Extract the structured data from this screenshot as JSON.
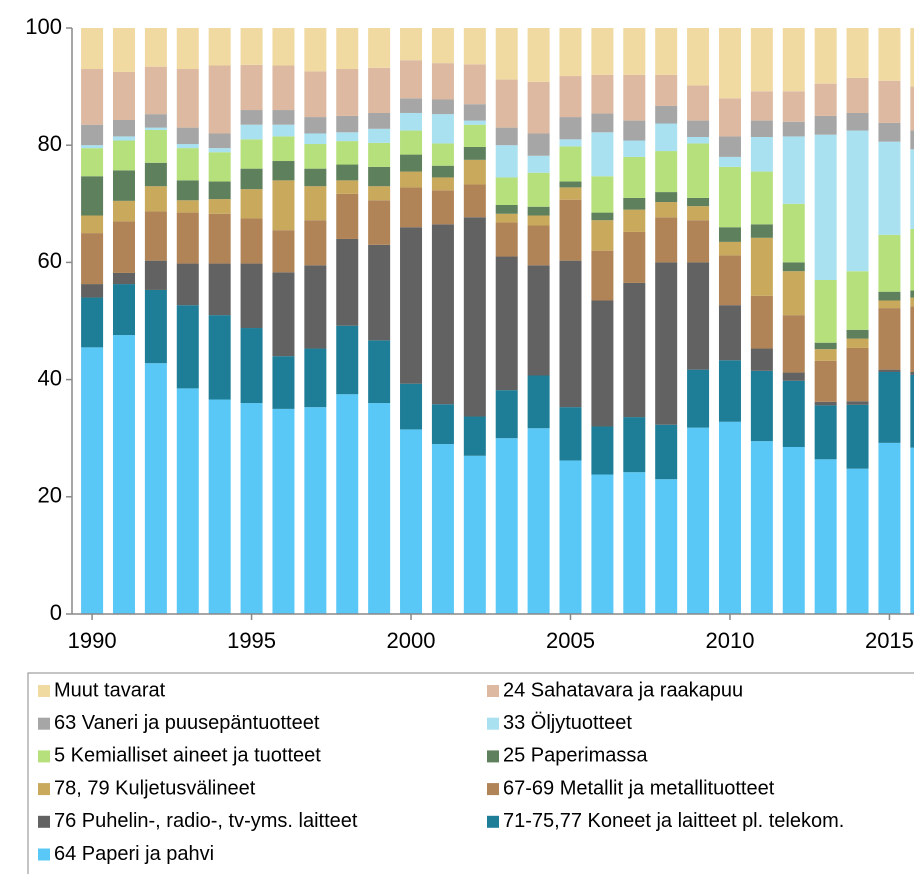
{
  "chart_data": {
    "type": "stacked_bar",
    "x": [
      1990,
      1991,
      1992,
      1993,
      1994,
      1995,
      1996,
      1997,
      1998,
      1999,
      2000,
      2001,
      2002,
      2003,
      2004,
      2005,
      2006,
      2007,
      2008,
      2009,
      2010,
      2011,
      2012,
      2013,
      2014,
      2015,
      2016
    ],
    "xlim": [
      1989.37,
      2015.77
    ],
    "xticks": [
      1990,
      1995,
      2000,
      2005,
      2010,
      2015
    ],
    "ylim": [
      0,
      100
    ],
    "yticks": [
      0,
      20,
      40,
      60,
      80,
      100
    ],
    "grid": false,
    "series": [
      {
        "name": "Muut tavarat",
        "color": "#f0daa2",
        "values": [
          7,
          7.5,
          6.6,
          7,
          6.4,
          6.3,
          6.4,
          7.4,
          7,
          6.8,
          5.5,
          6,
          6.2,
          8.8,
          9.2,
          8.2,
          8,
          8,
          8,
          9.8,
          12,
          10.8,
          10.8,
          9.5,
          8.5,
          9,
          10
        ]
      },
      {
        "name": "24 Sahatavara ja raakapuu",
        "color": "#dcb9a0",
        "values": [
          9.5,
          8.2,
          8.1,
          10,
          11.6,
          7.7,
          7.6,
          7.8,
          8,
          7.7,
          6.5,
          6.2,
          6.8,
          8.2,
          8.8,
          7,
          6.6,
          7.8,
          5.3,
          6,
          6.5,
          5,
          5.2,
          5.5,
          6,
          7.2,
          7.5
        ]
      },
      {
        "name": "63 Vaneri ja puusepäntuotteet",
        "color": "#a6a6a6",
        "values": [
          3.5,
          2.8,
          2.3,
          2.8,
          2.5,
          2.5,
          2.5,
          2.8,
          2.8,
          2.7,
          2.5,
          2.5,
          2.8,
          3,
          3.8,
          3.8,
          3.2,
          3.4,
          3,
          2.8,
          3.5,
          2.8,
          2.5,
          3.2,
          3,
          3.2,
          3.2
        ]
      },
      {
        "name": "33 Öljytuotteet",
        "color": "#a9e1f1",
        "values": [
          0.5,
          0.7,
          0.4,
          0.7,
          0.7,
          2.5,
          2,
          1.8,
          1.5,
          2.4,
          3,
          5,
          0.7,
          5.5,
          2.9,
          1.2,
          7.5,
          2.8,
          4.7,
          1.1,
          1.7,
          5.9,
          11.5,
          24.8,
          24,
          15.9,
          13.6
        ]
      },
      {
        "name": "5 Kemialliset aineet ja tuotteet",
        "color": "#b6e07c",
        "values": [
          4.8,
          5.1,
          5.6,
          5.5,
          5,
          5,
          4.2,
          4.2,
          4,
          4.1,
          4.1,
          3.8,
          3.8,
          4.7,
          5.8,
          6,
          6.2,
          7,
          7,
          9.3,
          10.3,
          9,
          10,
          10.7,
          10,
          9.7,
          10.5
        ]
      },
      {
        "name": "25 Paperimassa",
        "color": "#5f805c",
        "values": [
          6.7,
          5.2,
          4,
          3.4,
          3,
          3.5,
          3.3,
          3,
          2.7,
          3.3,
          2.9,
          2,
          2.2,
          1.5,
          1.5,
          1,
          1.3,
          2,
          1.7,
          1.4,
          2.5,
          2.3,
          1.5,
          1.1,
          1.5,
          1.5,
          1.2
        ]
      },
      {
        "name": "78, 79 Kuljetusvälineet",
        "color": "#c9a95b",
        "values": [
          3,
          3.5,
          4.3,
          2.1,
          2.5,
          5,
          8.5,
          5.8,
          2.3,
          2.4,
          2.7,
          2.2,
          4.2,
          1.5,
          1.7,
          2.1,
          5.2,
          3.8,
          2.6,
          2.4,
          2.3,
          9.9,
          7.5,
          2,
          1.6,
          1.3,
          1.5
        ]
      },
      {
        "name": "67-69 Metallit ja metallituotteet",
        "color": "#b08457",
        "values": [
          8.7,
          8.8,
          8.4,
          8.7,
          8.5,
          7.7,
          7.2,
          7.7,
          7.7,
          7.6,
          6.8,
          5.8,
          5.6,
          5.8,
          6.8,
          10.4,
          8.5,
          8.7,
          7.7,
          7.2,
          8.5,
          9,
          9.8,
          7,
          9.1,
          10.5,
          11.2
        ]
      },
      {
        "name": "76 Puhelin-, radio-, tv-yms. laitteet",
        "color": "#626262",
        "values": [
          2.3,
          1.9,
          5,
          7.1,
          8.8,
          11,
          14.3,
          14.2,
          14.8,
          16.3,
          26.7,
          30.7,
          34,
          22.8,
          18.8,
          25,
          21.5,
          22.9,
          27.7,
          18.3,
          9.4,
          3.8,
          1.4,
          0.6,
          0.6,
          0.4,
          0.5
        ]
      },
      {
        "name": "71-75,77 Koneet ja laitteet pl. telekom.",
        "color": "#1f7e97",
        "values": [
          8.5,
          8.7,
          12.5,
          14.2,
          14.4,
          12.8,
          9,
          10,
          11.7,
          10.7,
          7.8,
          6.8,
          6.7,
          8.2,
          9,
          9.1,
          8.2,
          9.4,
          9.3,
          9.9,
          10.5,
          12,
          11.3,
          9.2,
          10.9,
          12.1,
          12.4
        ]
      },
      {
        "name": "64 Paperi ja pahvi",
        "color": "#5ac8f6",
        "values": [
          45.5,
          47.6,
          42.8,
          38.5,
          36.6,
          36,
          35,
          35.3,
          37.5,
          36,
          31.5,
          29,
          27,
          30,
          31.7,
          26.2,
          23.8,
          24.2,
          23,
          31.8,
          32.8,
          29.5,
          28.5,
          26.4,
          24.8,
          29.2,
          28.4
        ]
      }
    ]
  }
}
